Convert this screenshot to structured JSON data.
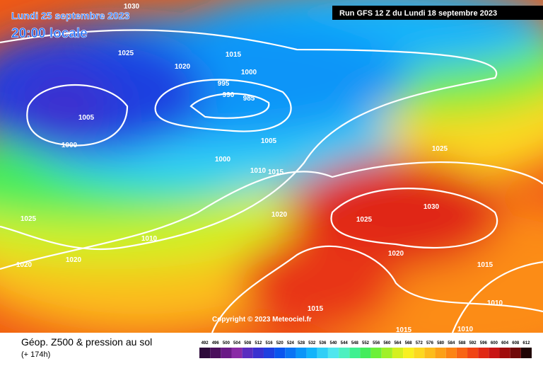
{
  "header": {
    "date": "Lundi 25 septembre 2023",
    "time": "20:00 locale",
    "run": "Run GFS 12 Z du Lundi 18 septembre 2023"
  },
  "footer": {
    "title": "Géop. Z500 & pression au sol",
    "lead": "(+ 174h)",
    "copyright": "Copyright © 2023 Meteociel.fr"
  },
  "isobar_labels": [
    "1030",
    "1025",
    "1020",
    "1015",
    "1000",
    "995",
    "990",
    "985",
    "1005",
    "1000",
    "1005",
    "1000",
    "1010",
    "1015",
    "1025",
    "1030",
    "1025",
    "1020",
    "1010",
    "1025",
    "1020",
    "1020",
    "1020",
    "1015",
    "1015",
    "1010",
    "1010",
    "1015"
  ],
  "scale": {
    "values": [
      492,
      496,
      500,
      504,
      508,
      512,
      516,
      520,
      524,
      528,
      532,
      536,
      540,
      544,
      548,
      552,
      556,
      560,
      564,
      568,
      572,
      576,
      580,
      584,
      588,
      592,
      596,
      600,
      604,
      608,
      612
    ],
    "colors": [
      "#2d0a3a",
      "#4a0f5c",
      "#6a1a86",
      "#8a2aa6",
      "#5a2cc0",
      "#3a30d0",
      "#1f3fe0",
      "#0a55ee",
      "#0a74f4",
      "#0a95f8",
      "#12b4fa",
      "#30cff6",
      "#50e6ee",
      "#4ef0c0",
      "#3ef090",
      "#44ec5c",
      "#6cf038",
      "#a0f028",
      "#d4f020",
      "#f8f020",
      "#fcd820",
      "#fcbc1c",
      "#fca018",
      "#fc8414",
      "#f86414",
      "#f04414",
      "#e02814",
      "#c81414",
      "#a00c0c",
      "#700808",
      "#200404"
    ]
  }
}
